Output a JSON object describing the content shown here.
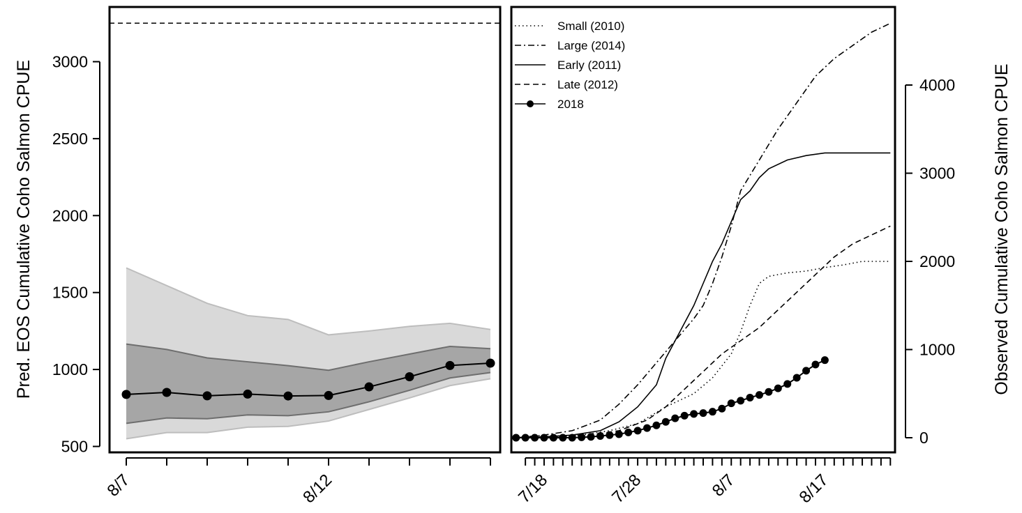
{
  "chart_data": [
    {
      "type": "line",
      "ylabel": "Pred. EOS Cumulative Coho Salmon CPUE",
      "ylim": [
        500,
        3250
      ],
      "yticks": [
        500,
        1000,
        1500,
        2000,
        2500,
        3000
      ],
      "x_dates": [
        "8/7",
        "8/8",
        "8/9",
        "8/10",
        "8/11",
        "8/12",
        "8/13",
        "8/14",
        "8/15",
        "8/16"
      ],
      "x_labeled": [
        "8/7",
        "8/12"
      ],
      "reference_line": 3250,
      "series": [
        {
          "kind": "points-line",
          "values": [
            838,
            851,
            829,
            840,
            828,
            831,
            887,
            953,
            1026,
            1041
          ]
        }
      ],
      "bands": [
        {
          "kind": "outer",
          "color": "#d9d9d9",
          "upper": [
            1660,
            1545,
            1430,
            1350,
            1325,
            1225,
            1250,
            1280,
            1300,
            1260
          ],
          "lower": [
            550,
            590,
            590,
            625,
            630,
            665,
            740,
            815,
            895,
            940
          ]
        },
        {
          "kind": "inner",
          "color": "#a6a6a6",
          "upper": [
            1165,
            1130,
            1075,
            1050,
            1025,
            995,
            1050,
            1100,
            1150,
            1135
          ],
          "lower": [
            650,
            685,
            680,
            705,
            700,
            725,
            790,
            865,
            945,
            980
          ]
        }
      ]
    },
    {
      "type": "line",
      "ylabel": "Observed Cumulative Coho Salmon CPUE",
      "ylim": [
        -100,
        4800
      ],
      "yticks": [
        0,
        1000,
        2000,
        3000,
        4000
      ],
      "x_start": "7/15",
      "x_range": [
        -0.5,
        40.5
      ],
      "x_labeled": [
        {
          "label": "7/18",
          "day": 3
        },
        {
          "label": "7/28",
          "day": 13
        },
        {
          "label": "8/7",
          "day": 23
        },
        {
          "label": "8/17",
          "day": 33
        }
      ],
      "legend": {
        "position": "top-left"
      },
      "series": [
        {
          "name": "Small (2010)",
          "style": "dotted",
          "points": [
            [
              0,
              0
            ],
            [
              3,
              10
            ],
            [
              7,
              30
            ],
            [
              10,
              80
            ],
            [
              13,
              160
            ],
            [
              16,
              350
            ],
            [
              19,
              500
            ],
            [
              21,
              680
            ],
            [
              23,
              950
            ],
            [
              24,
              1200
            ],
            [
              25,
              1500
            ],
            [
              26,
              1750
            ],
            [
              27,
              1830
            ],
            [
              29,
              1870
            ],
            [
              31,
              1890
            ],
            [
              33,
              1930
            ],
            [
              35,
              1960
            ],
            [
              37,
              2000
            ],
            [
              40,
              2000
            ]
          ]
        },
        {
          "name": "Large (2014)",
          "style": "dashdot",
          "points": [
            [
              0,
              0
            ],
            [
              3,
              30
            ],
            [
              6,
              80
            ],
            [
              9,
              200
            ],
            [
              11,
              380
            ],
            [
              13,
              600
            ],
            [
              15,
              850
            ],
            [
              17,
              1100
            ],
            [
              19,
              1350
            ],
            [
              20,
              1500
            ],
            [
              21,
              1750
            ],
            [
              22,
              2050
            ],
            [
              23,
              2400
            ],
            [
              24,
              2800
            ],
            [
              26,
              3150
            ],
            [
              28,
              3500
            ],
            [
              30,
              3800
            ],
            [
              32,
              4100
            ],
            [
              34,
              4300
            ],
            [
              36,
              4450
            ],
            [
              38,
              4600
            ],
            [
              40,
              4700
            ]
          ]
        },
        {
          "name": "Early (2011)",
          "style": "solid",
          "points": [
            [
              0,
              0
            ],
            [
              3,
              10
            ],
            [
              6,
              30
            ],
            [
              9,
              80
            ],
            [
              11,
              180
            ],
            [
              13,
              350
            ],
            [
              15,
              600
            ],
            [
              16,
              900
            ],
            [
              17,
              1100
            ],
            [
              18,
              1300
            ],
            [
              19,
              1500
            ],
            [
              20,
              1750
            ],
            [
              21,
              2000
            ],
            [
              22,
              2200
            ],
            [
              23,
              2450
            ],
            [
              24,
              2700
            ],
            [
              25,
              2800
            ],
            [
              26,
              2950
            ],
            [
              27,
              3050
            ],
            [
              29,
              3150
            ],
            [
              31,
              3200
            ],
            [
              33,
              3230
            ],
            [
              35,
              3230
            ],
            [
              40,
              3230
            ]
          ]
        },
        {
          "name": "Late (2012)",
          "style": "dashed",
          "points": [
            [
              0,
              0
            ],
            [
              4,
              10
            ],
            [
              8,
              30
            ],
            [
              11,
              80
            ],
            [
              14,
              200
            ],
            [
              16,
              350
            ],
            [
              18,
              550
            ],
            [
              20,
              750
            ],
            [
              22,
              950
            ],
            [
              24,
              1100
            ],
            [
              26,
              1250
            ],
            [
              28,
              1450
            ],
            [
              30,
              1650
            ],
            [
              32,
              1850
            ],
            [
              34,
              2050
            ],
            [
              36,
              2200
            ],
            [
              38,
              2300
            ],
            [
              40,
              2400
            ]
          ]
        },
        {
          "name": "2018",
          "style": "points-line",
          "points": [
            [
              0,
              0
            ],
            [
              1,
              0
            ],
            [
              2,
              0
            ],
            [
              3,
              0
            ],
            [
              4,
              0
            ],
            [
              5,
              0
            ],
            [
              6,
              0
            ],
            [
              7,
              5
            ],
            [
              8,
              10
            ],
            [
              9,
              20
            ],
            [
              10,
              30
            ],
            [
              11,
              40
            ],
            [
              12,
              60
            ],
            [
              13,
              80
            ],
            [
              14,
              110
            ],
            [
              15,
              140
            ],
            [
              16,
              180
            ],
            [
              17,
              220
            ],
            [
              18,
              250
            ],
            [
              19,
              270
            ],
            [
              20,
              280
            ],
            [
              21,
              295
            ],
            [
              22,
              330
            ],
            [
              23,
              390
            ],
            [
              24,
              420
            ],
            [
              25,
              455
            ],
            [
              26,
              485
            ],
            [
              27,
              520
            ],
            [
              28,
              560
            ],
            [
              29,
              610
            ],
            [
              30,
              680
            ],
            [
              31,
              760
            ],
            [
              32,
              830
            ],
            [
              33,
              880
            ]
          ]
        }
      ]
    }
  ]
}
